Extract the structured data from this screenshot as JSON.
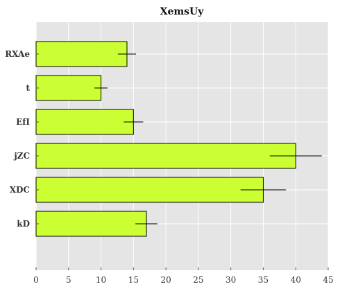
{
  "chart_data": {
    "type": "bar",
    "orientation": "horizontal",
    "title": "XemsUy",
    "xlabel": "",
    "ylabel": "",
    "categories": [
      "kD",
      "XDC",
      "jZC",
      "EfI",
      "t",
      "RXAe"
    ],
    "values": [
      17,
      35,
      40,
      15,
      10,
      14
    ],
    "errors": [
      1.7,
      3.5,
      4.0,
      1.5,
      1.0,
      1.4
    ],
    "xlim": [
      0,
      45
    ],
    "xticks": [
      "0",
      "5",
      "10",
      "15",
      "20",
      "25",
      "30",
      "35",
      "40",
      "45"
    ],
    "grid": true,
    "legend": "none",
    "colors": {
      "bar_fill": "#ccff33",
      "bar_edge": "#000000",
      "plot_bg": "#e5e5e5",
      "grid": "#ffffff",
      "error": "#000000"
    }
  }
}
